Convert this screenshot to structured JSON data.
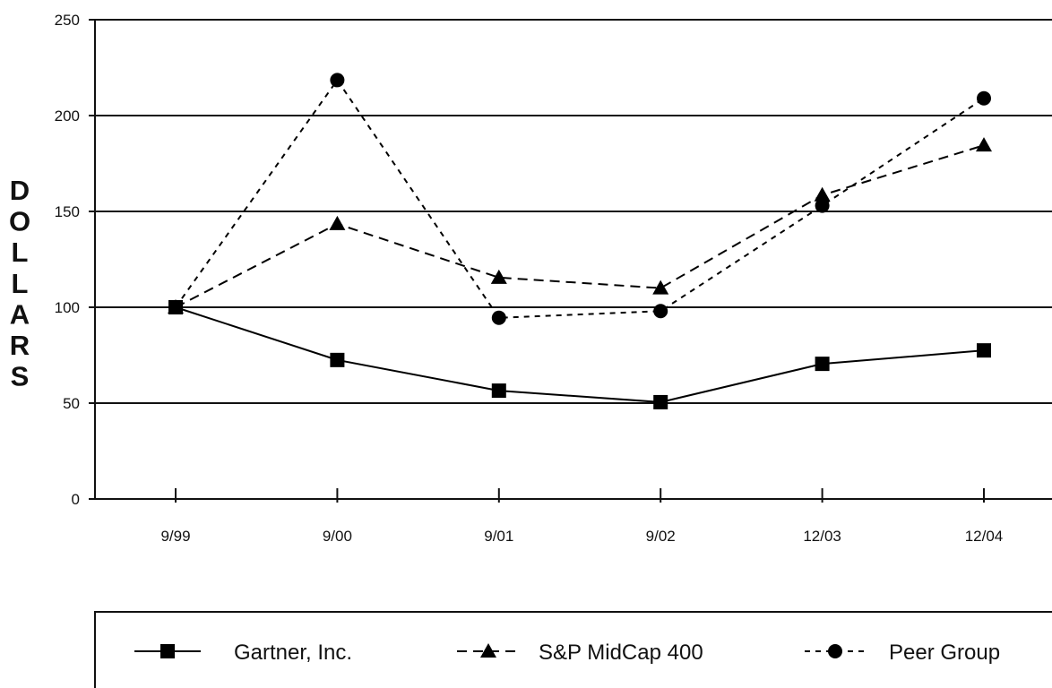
{
  "chart_data": {
    "type": "line",
    "title": "",
    "xlabel": "",
    "ylabel": "DOLLARS",
    "categories": [
      "9/99",
      "9/00",
      "9/01",
      "9/02",
      "12/03",
      "12/04"
    ],
    "ylim": [
      0,
      250
    ],
    "yticks": [
      0,
      50,
      100,
      150,
      200,
      250
    ],
    "grid": true,
    "legend_position": "bottom",
    "series": [
      {
        "name": "Gartner, Inc.",
        "values": [
          100,
          72.5,
          56.5,
          50.5,
          70.5,
          77.5
        ],
        "line_style": "solid",
        "marker": "square",
        "color": "#000000"
      },
      {
        "name": "S&P MidCap 400",
        "values": [
          100,
          143.5,
          115.5,
          110,
          158.5,
          184.5
        ],
        "line_style": "dashed",
        "marker": "triangle",
        "color": "#000000"
      },
      {
        "name": "Peer Group",
        "values": [
          100,
          218.5,
          94.5,
          98,
          153,
          209
        ],
        "line_style": "dotted",
        "marker": "circle",
        "color": "#000000"
      }
    ]
  }
}
